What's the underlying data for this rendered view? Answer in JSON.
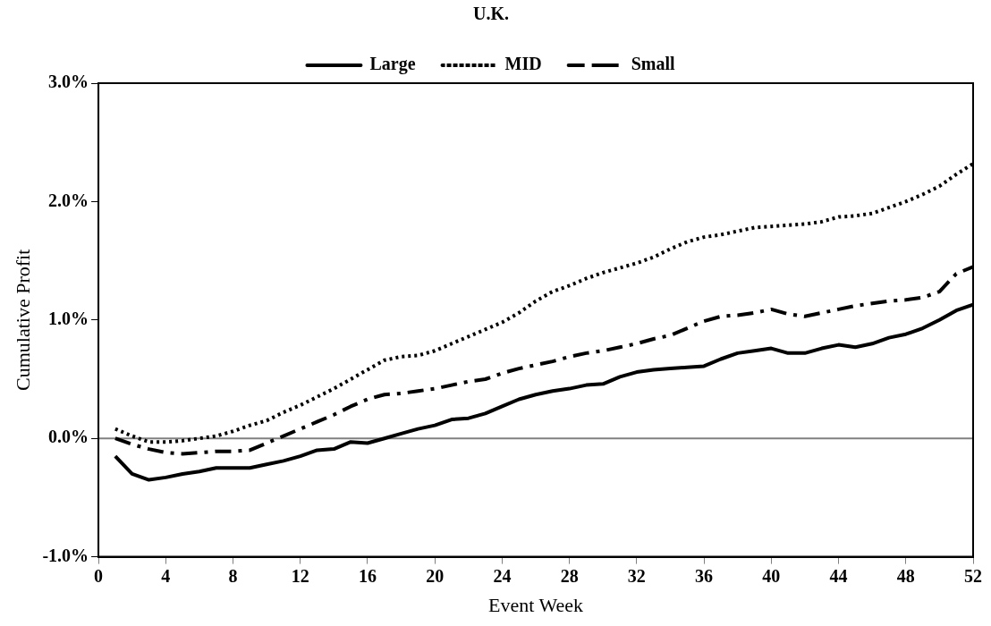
{
  "chart_data": {
    "type": "line",
    "title": "U.K.",
    "xlabel": "Event Week",
    "ylabel": "Cumulative Profit",
    "x": [
      1,
      2,
      3,
      4,
      5,
      6,
      7,
      8,
      9,
      10,
      11,
      12,
      13,
      14,
      15,
      16,
      17,
      18,
      19,
      20,
      21,
      22,
      23,
      24,
      25,
      26,
      27,
      28,
      29,
      30,
      31,
      32,
      33,
      34,
      35,
      36,
      37,
      38,
      39,
      40,
      41,
      42,
      43,
      44,
      45,
      46,
      47,
      48,
      49,
      50,
      51,
      52
    ],
    "series": [
      {
        "name": "Large",
        "color": "#000000",
        "line_style": "solid",
        "values": [
          -0.15,
          -0.3,
          -0.35,
          -0.33,
          -0.3,
          -0.28,
          -0.25,
          -0.25,
          -0.25,
          -0.22,
          -0.19,
          -0.15,
          -0.1,
          -0.09,
          -0.03,
          -0.04,
          0.0,
          0.04,
          0.08,
          0.11,
          0.16,
          0.17,
          0.21,
          0.27,
          0.33,
          0.37,
          0.4,
          0.42,
          0.45,
          0.46,
          0.52,
          0.56,
          0.58,
          0.59,
          0.6,
          0.61,
          0.67,
          0.72,
          0.74,
          0.76,
          0.72,
          0.72,
          0.76,
          0.79,
          0.77,
          0.8,
          0.85,
          0.88,
          0.93,
          1.0,
          1.08,
          1.13
        ]
      },
      {
        "name": "MID",
        "color": "#000000",
        "line_style": "dotted",
        "values": [
          0.08,
          0.02,
          -0.03,
          -0.03,
          -0.02,
          0.0,
          0.02,
          0.06,
          0.11,
          0.15,
          0.22,
          0.28,
          0.35,
          0.42,
          0.5,
          0.58,
          0.66,
          0.69,
          0.7,
          0.74,
          0.8,
          0.86,
          0.92,
          0.98,
          1.06,
          1.16,
          1.24,
          1.29,
          1.35,
          1.4,
          1.44,
          1.48,
          1.53,
          1.6,
          1.66,
          1.7,
          1.72,
          1.75,
          1.78,
          1.79,
          1.8,
          1.81,
          1.83,
          1.87,
          1.88,
          1.9,
          1.95,
          2.0,
          2.06,
          2.13,
          2.23,
          2.32
        ]
      },
      {
        "name": "Small",
        "color": "#000000",
        "line_style": "dashed",
        "values": [
          0.0,
          -0.05,
          -0.09,
          -0.12,
          -0.13,
          -0.12,
          -0.11,
          -0.11,
          -0.1,
          -0.04,
          0.02,
          0.08,
          0.14,
          0.2,
          0.27,
          0.33,
          0.37,
          0.38,
          0.4,
          0.42,
          0.45,
          0.48,
          0.5,
          0.55,
          0.59,
          0.62,
          0.65,
          0.69,
          0.72,
          0.74,
          0.77,
          0.8,
          0.84,
          0.87,
          0.93,
          0.99,
          1.03,
          1.04,
          1.06,
          1.09,
          1.05,
          1.03,
          1.06,
          1.09,
          1.12,
          1.14,
          1.16,
          1.17,
          1.19,
          1.24,
          1.39,
          1.45
        ]
      }
    ],
    "xlim": [
      0,
      52
    ],
    "xticks": [
      0,
      4,
      8,
      12,
      16,
      20,
      24,
      28,
      32,
      36,
      40,
      44,
      48,
      52
    ],
    "ylim": [
      -1.0,
      3.0
    ],
    "yticks": [
      {
        "value": -1.0,
        "label": "-1.0%"
      },
      {
        "value": 0.0,
        "label": "0.0%"
      },
      {
        "value": 1.0,
        "label": "1.0%"
      },
      {
        "value": 2.0,
        "label": "2.0%"
      },
      {
        "value": 3.0,
        "label": "3.0%"
      }
    ],
    "ref_lines": [
      {
        "axis": "y",
        "value": 0,
        "color": "#808080"
      }
    ],
    "grid": false,
    "legend": "top",
    "marker": "none"
  }
}
